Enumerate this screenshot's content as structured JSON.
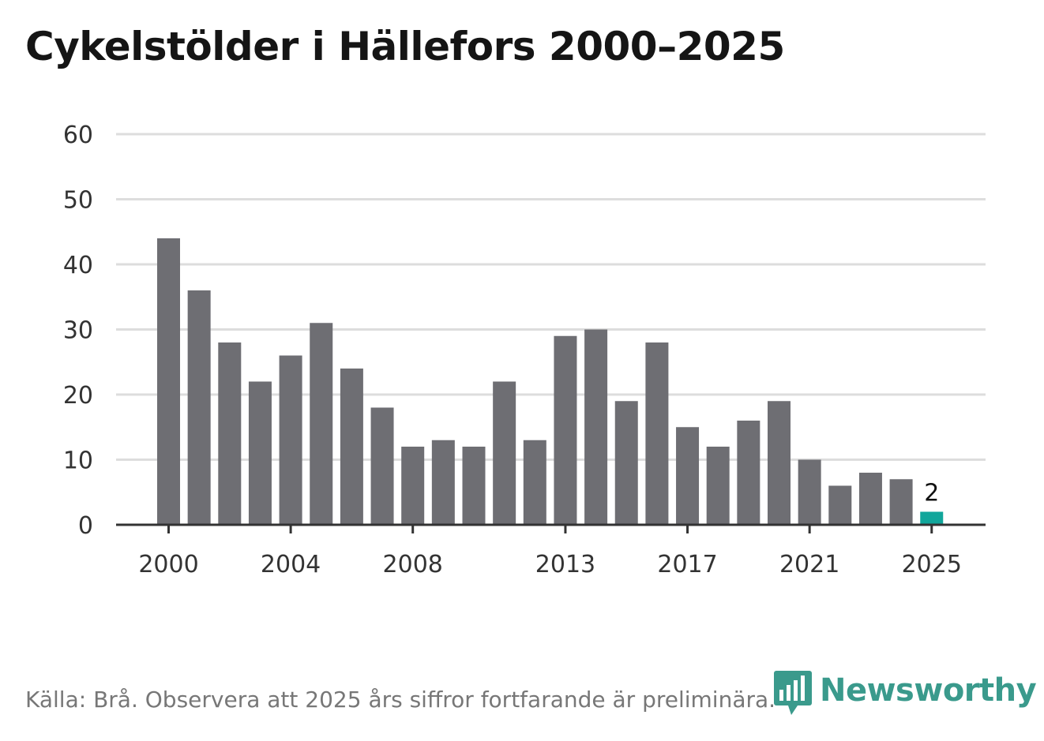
{
  "title": "Cykelstölder i Hällefors 2000–2025",
  "source": "Källa: Brå. Observera att 2025 års siffror fortfarande är preliminära.",
  "logo": {
    "text": "Newsworthy",
    "icon": "newsworthy-logo-icon",
    "color": "#3a9a8c"
  },
  "colors": {
    "bar": "#6e6e73",
    "highlight": "#11a69b",
    "grid": "#dddddd",
    "axis": "#333333",
    "text": "#333333"
  },
  "chart_data": {
    "type": "bar",
    "title": "Cykelstölder i Hällefors 2000–2025",
    "xlabel": "",
    "ylabel": "",
    "ylim": [
      0,
      60
    ],
    "yticks": [
      0,
      10,
      20,
      30,
      40,
      50,
      60
    ],
    "ytick_labels": [
      "0",
      "10",
      "20",
      "30",
      "40",
      "50",
      "60"
    ],
    "xtick_labels": [
      "2000",
      "2004",
      "2008",
      "2013",
      "2017",
      "2021",
      "2025"
    ],
    "categories": [
      "2000",
      "2001",
      "2002",
      "2003",
      "2004",
      "2005",
      "2006",
      "2007",
      "2008",
      "2009",
      "2010",
      "2011",
      "2012",
      "2013",
      "2014",
      "2015",
      "2016",
      "2017",
      "2018",
      "2019",
      "2020",
      "2021",
      "2022",
      "2023",
      "2024",
      "2025"
    ],
    "values": [
      44,
      36,
      28,
      22,
      26,
      31,
      24,
      18,
      12,
      13,
      12,
      22,
      13,
      29,
      30,
      19,
      28,
      15,
      12,
      16,
      19,
      10,
      6,
      8,
      7,
      2
    ],
    "highlight_index": 25,
    "data_labels": [
      {
        "category": "2025",
        "text": "2"
      }
    ],
    "grid": true,
    "legend": "none"
  }
}
